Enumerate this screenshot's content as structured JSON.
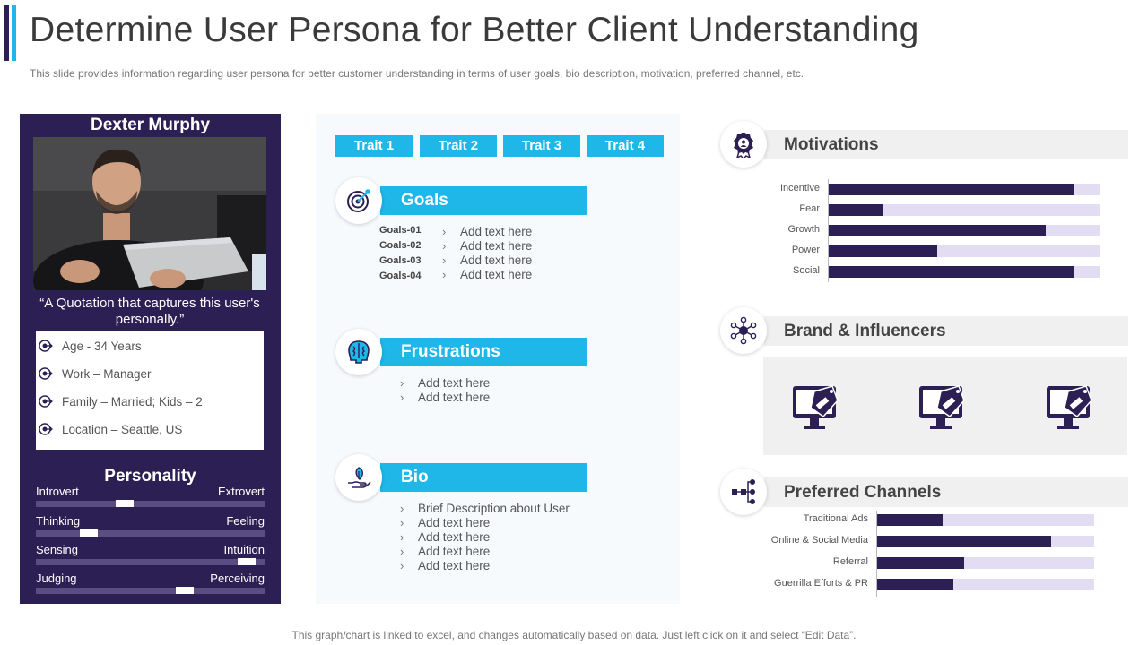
{
  "header": {
    "title": "Determine User Persona for Better Client Understanding",
    "subtitle": "This slide provides information regarding user persona for better customer understanding in terms of user goals, bio description, motivation, preferred channel, etc."
  },
  "footer": "This graph/chart is linked to excel,  and changes automatically based on data. Just left click on it and select “Edit Data”.",
  "persona": {
    "name": "Dexter Murphy",
    "quote": "“A Quotation that captures this user's personally.”",
    "info": [
      "Age - 34 Years",
      "Work – Manager",
      "Family – Married;  Kids – 2",
      "Location – Seattle, US"
    ],
    "personality_title": "Personality",
    "traits": [
      {
        "left": "Introvert",
        "right": "Extrovert",
        "value": 0.39
      },
      {
        "left": "Thinking",
        "right": "Feeling",
        "value": 0.23
      },
      {
        "left": "Sensing",
        "right": "Intuition",
        "value": 0.92
      },
      {
        "left": "Judging",
        "right": "Perceiving",
        "value": 0.65
      }
    ]
  },
  "middle": {
    "traits": [
      "Trait 1",
      "Trait 2",
      "Trait 3",
      "Trait 4"
    ],
    "goals": {
      "title": "Goals",
      "items": [
        {
          "label": "Goals-01",
          "text": "Add text here"
        },
        {
          "label": "Goals-02",
          "text": "Add text here"
        },
        {
          "label": "Goals-03",
          "text": "Add text here"
        },
        {
          "label": "Goals-04",
          "text": "Add text here"
        }
      ]
    },
    "frustrations": {
      "title": "Frustrations",
      "items": [
        "Add text here",
        "Add text here"
      ]
    },
    "bio": {
      "title": "Bio",
      "items": [
        "Brief Description about User",
        "Add text here",
        "Add text here",
        "Add text here",
        "Add text here"
      ]
    }
  },
  "right": {
    "motivations_title": "Motivations",
    "brands_title": "Brand & Influencers",
    "channels_title": "Preferred Channels"
  },
  "colors": {
    "primary": "#2c1f54",
    "accent": "#1fb6e8",
    "track": "#e2ddf3"
  },
  "chart_data": [
    {
      "type": "bar",
      "orientation": "horizontal",
      "categories": [
        "Incentive",
        "Fear",
        "Growth",
        "Power",
        "Social"
      ],
      "values": [
        0.9,
        0.2,
        0.8,
        0.4,
        0.9
      ],
      "xlim": [
        0,
        1
      ]
    },
    {
      "type": "bar",
      "orientation": "horizontal",
      "categories": [
        "Traditional Ads",
        "Online & Social Media",
        "Referral",
        "Guerrilla Efforts & PR"
      ],
      "values": [
        0.3,
        0.8,
        0.4,
        0.35
      ],
      "xlim": [
        0,
        1
      ]
    }
  ]
}
